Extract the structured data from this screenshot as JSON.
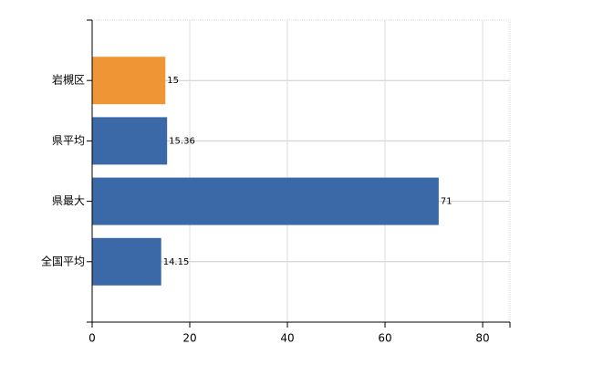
{
  "chart_data": {
    "type": "bar",
    "orientation": "horizontal",
    "categories": [
      "岩槻区",
      "県平均",
      "県最大",
      "全国平均"
    ],
    "values": [
      15,
      15.36,
      71,
      14.15
    ],
    "colors": [
      "#ef9535",
      "#3b69a8",
      "#3b69a8",
      "#3b69a8"
    ],
    "xlim": [
      0,
      85.6
    ],
    "xticks": [
      0,
      20,
      40,
      60,
      80
    ],
    "grid": true
  }
}
